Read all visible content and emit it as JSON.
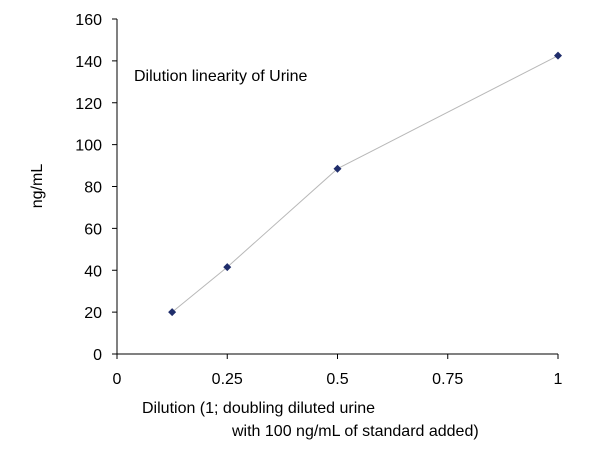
{
  "chart_data": {
    "type": "scatter",
    "title": "",
    "annotation": "Dilution linearity of Urine",
    "xlabel_line1": "Dilution (1; doubling diluted urine",
    "xlabel_line2": "with 100 ng/mL of standard added)",
    "ylabel": "ng/mL",
    "xlim": [
      0,
      1
    ],
    "ylim": [
      0,
      160
    ],
    "x_ticks": [
      0,
      0.25,
      0.5,
      0.75,
      1
    ],
    "x_tick_labels": [
      "0",
      "0.25",
      "0.5",
      "0.75",
      "1"
    ],
    "y_ticks": [
      0,
      20,
      40,
      60,
      80,
      100,
      120,
      140,
      160
    ],
    "y_tick_labels": [
      "0",
      "20",
      "40",
      "60",
      "80",
      "100",
      "120",
      "140",
      "160"
    ],
    "grid": false,
    "legend": "none",
    "series": [
      {
        "x": [
          0.125,
          0.25,
          0.5,
          1
        ],
        "y": [
          20,
          41.5,
          88.5,
          142.5
        ],
        "marker": "diamond",
        "marker_color": "#1f2d6b",
        "line_color": "#b8b8b8"
      }
    ]
  }
}
